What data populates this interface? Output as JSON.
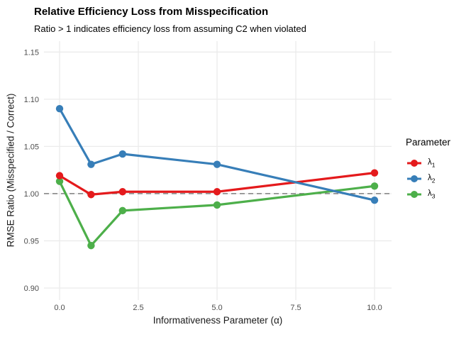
{
  "chart_data": {
    "type": "line",
    "title": "Relative Efficiency Loss from Misspecification",
    "subtitle": "Ratio > 1 indicates efficiency loss from assuming C2 when violated",
    "xlabel": "Informativeness Parameter (α)",
    "ylabel": "RMSE Ratio (Misspecified / Correct)",
    "x": [
      0,
      1,
      2,
      5,
      10
    ],
    "series": [
      {
        "name": "lambda1",
        "label_base": "λ",
        "label_sub": "1",
        "color": "#E41A1C",
        "values": [
          1.019,
          0.999,
          1.002,
          1.002,
          1.022
        ]
      },
      {
        "name": "lambda2",
        "label_base": "λ",
        "label_sub": "2",
        "color": "#377EB8",
        "values": [
          1.09,
          1.031,
          1.042,
          1.031,
          0.993
        ]
      },
      {
        "name": "lambda3",
        "label_base": "λ",
        "label_sub": "3",
        "color": "#4DAF4A",
        "values": [
          1.013,
          0.945,
          0.982,
          0.988,
          1.008
        ]
      }
    ],
    "xlim": [
      0,
      10
    ],
    "ylim": [
      0.9,
      1.15
    ],
    "xticks": [
      0,
      2.5,
      5,
      7.5,
      10
    ],
    "xtick_labels": [
      "0.0",
      "2.5",
      "5.0",
      "7.5",
      "10.0"
    ],
    "yticks": [
      0.9,
      0.95,
      1.0,
      1.05,
      1.1,
      1.15
    ],
    "ytick_labels": [
      "0.90",
      "0.95",
      "1.00",
      "1.05",
      "1.10",
      "1.15"
    ],
    "reference_line": {
      "y": 1.0,
      "style": "dashed",
      "color": "#7F7F7F"
    },
    "grid": true,
    "legend": {
      "title": "Parameter",
      "position": "right"
    },
    "colors": {
      "gridline": "#EBEBEB",
      "tick_text": "#4D4D4D",
      "background": "#FFFFFF"
    }
  }
}
